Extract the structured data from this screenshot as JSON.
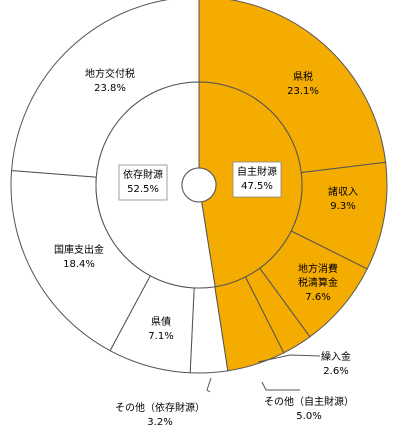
{
  "chart_data": {
    "type": "pie",
    "subtype": "nested-donut",
    "unit": "%",
    "colors": {
      "own": "#f5ac00",
      "dependent": "#ffffff",
      "stroke": "#555555"
    },
    "inner": [
      {
        "label": "自主財源",
        "value": 47.5,
        "group": "own"
      },
      {
        "label": "依存財源",
        "value": 52.5,
        "group": "dependent"
      }
    ],
    "outer": [
      {
        "label": "県税",
        "value": 23.1,
        "group": "own"
      },
      {
        "label": "諸収入",
        "value": 9.3,
        "group": "own"
      },
      {
        "label": "地方消費税清算金",
        "value": 7.6,
        "group": "own"
      },
      {
        "label": "繰入金",
        "value": 2.6,
        "group": "own"
      },
      {
        "label": "その他（自主財源）",
        "value": 5.0,
        "group": "own"
      },
      {
        "label": "その他（依存財源）",
        "value": 3.2,
        "group": "dependent"
      },
      {
        "label": "県債",
        "value": 7.1,
        "group": "dependent"
      },
      {
        "label": "国庫支出金",
        "value": 18.4,
        "group": "dependent"
      },
      {
        "label": "地方交付税",
        "value": 23.8,
        "group": "dependent"
      }
    ]
  }
}
